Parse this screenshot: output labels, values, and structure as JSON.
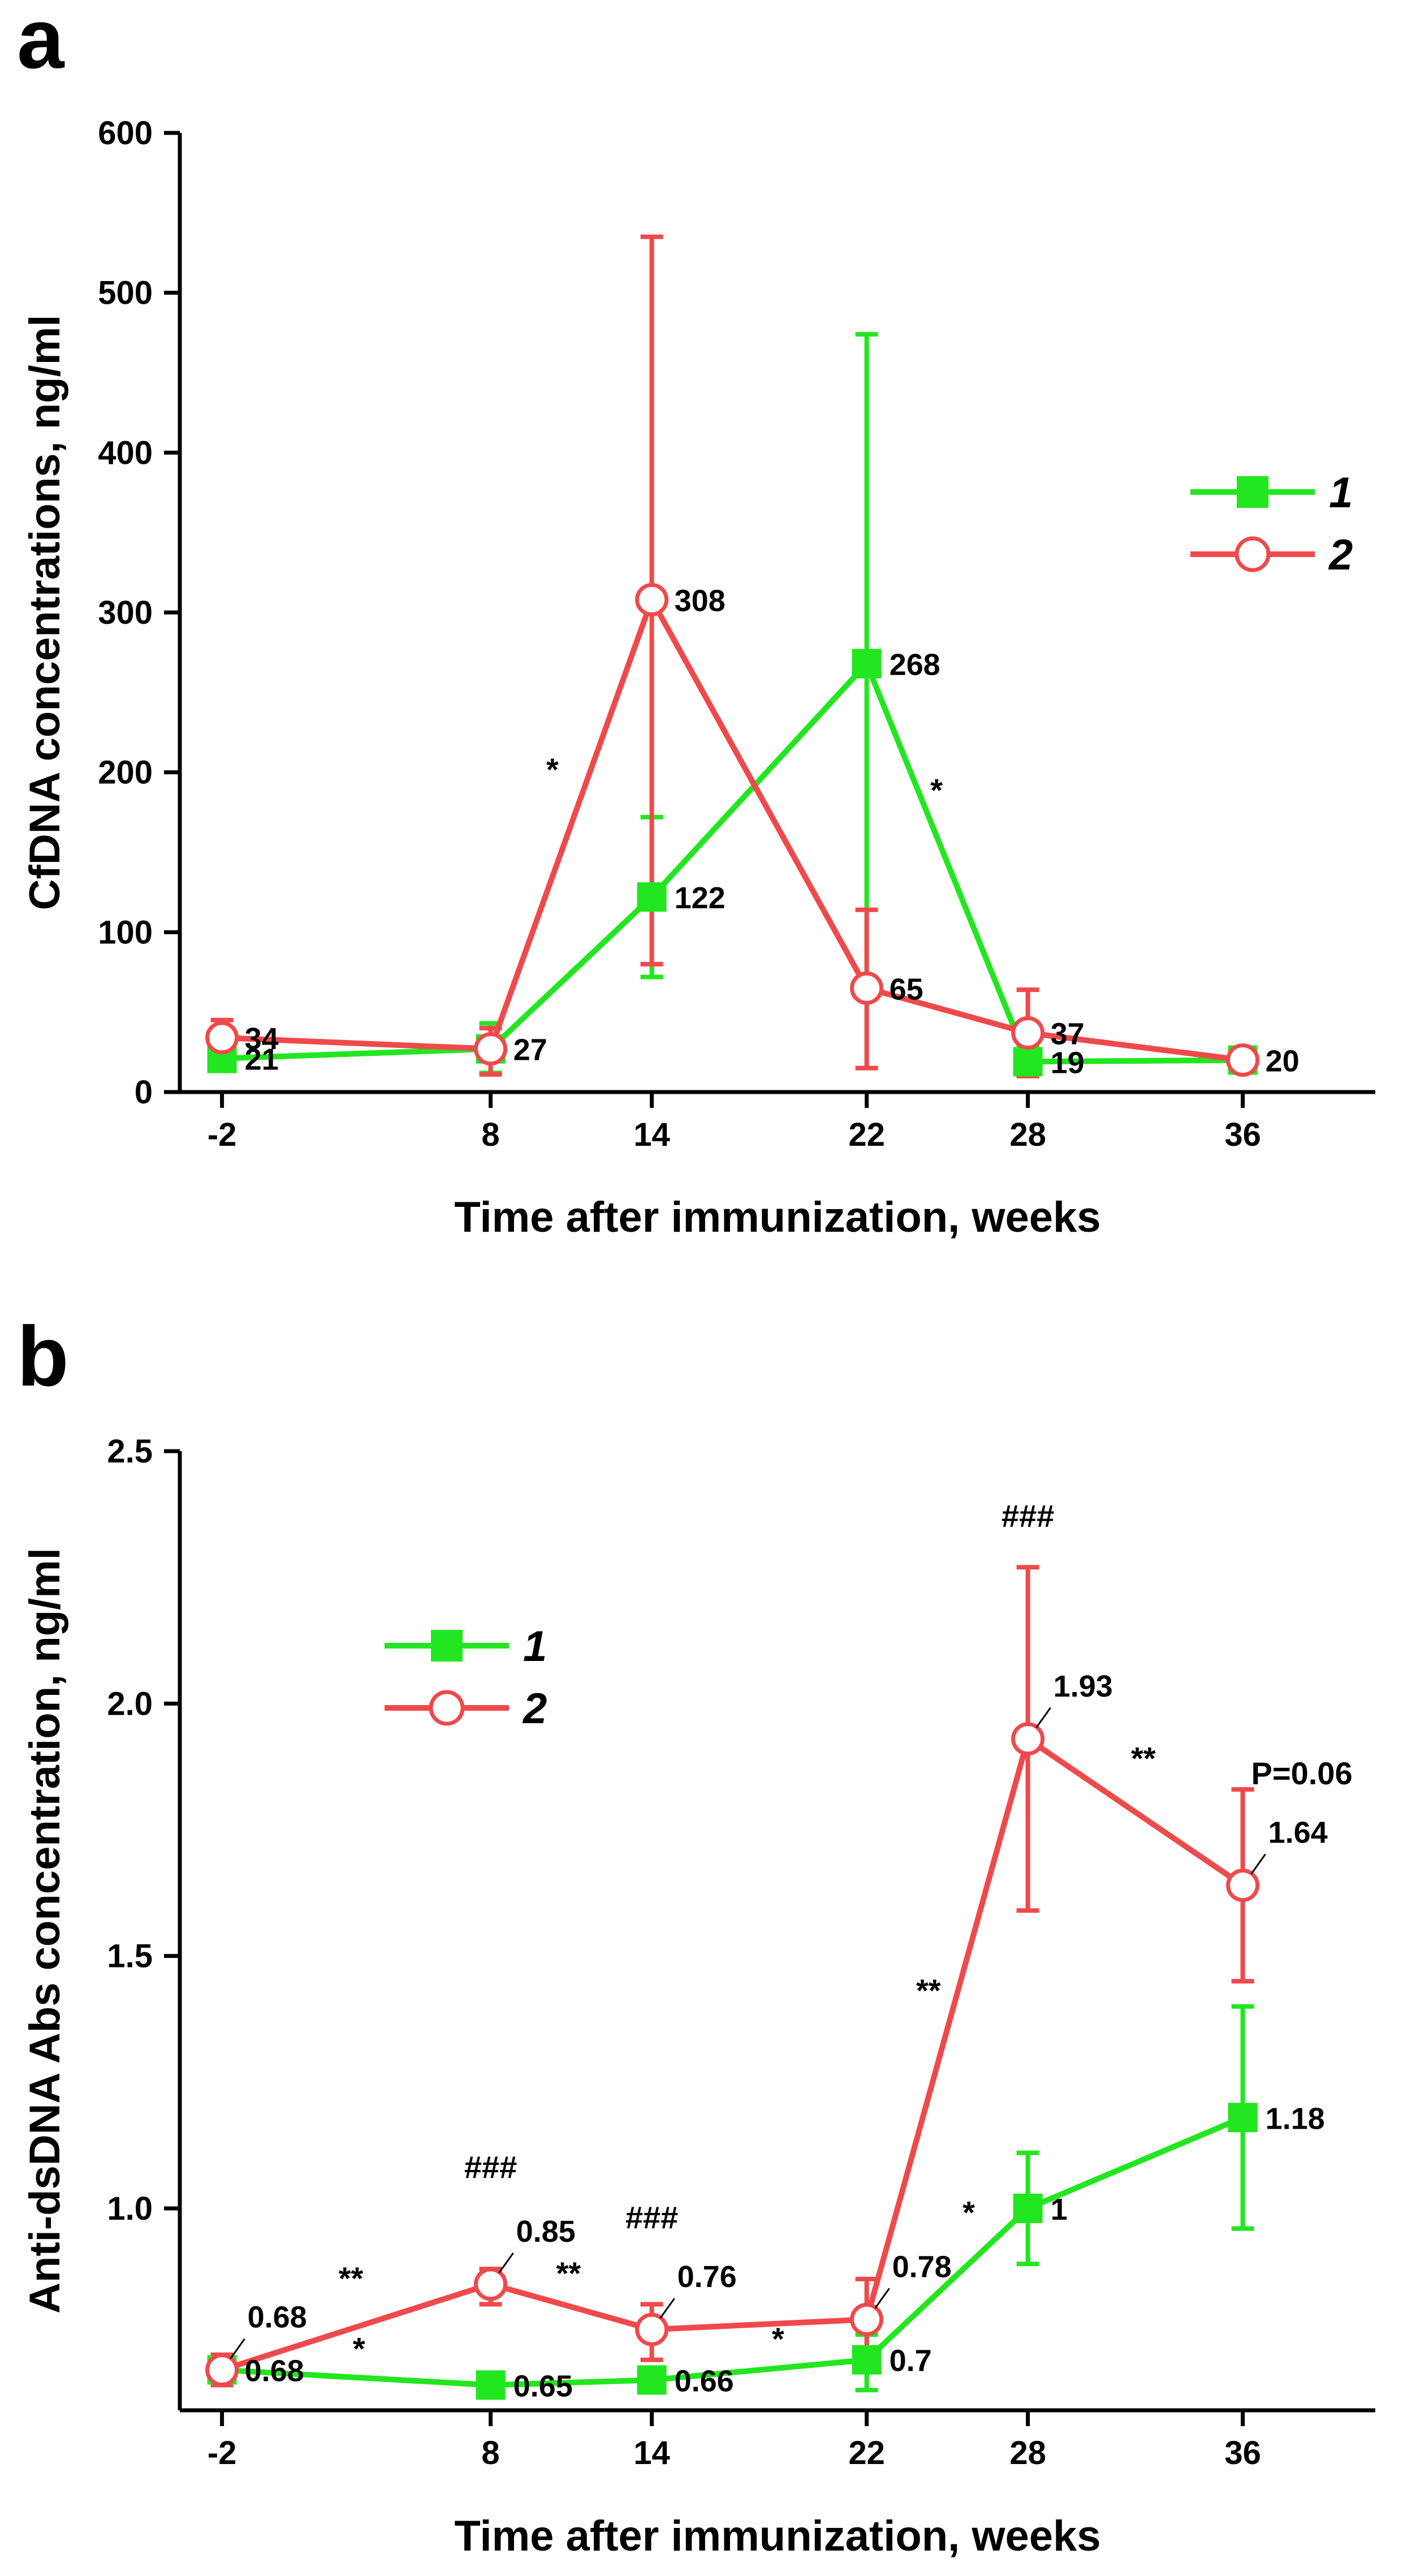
{
  "colors": {
    "series1": "#22e61f",
    "series2": "#f0494b",
    "axis": "#000000"
  },
  "chart_data": [
    {
      "panel": "a",
      "type": "line",
      "x": [
        -2,
        8,
        14,
        22,
        28,
        36
      ],
      "xticks": [
        "-2",
        "8",
        "14",
        "22",
        "28",
        "36"
      ],
      "xlabel": "Time after immunization, weeks",
      "ylabel": "CfDNA concentrations, ng/ml",
      "ylim": [
        0,
        600
      ],
      "yticks": [
        "0",
        "100",
        "200",
        "300",
        "400",
        "500",
        "600"
      ],
      "yticks_values": [
        0,
        100,
        200,
        300,
        400,
        500,
        600
      ],
      "legend_position": "top-right",
      "series": [
        {
          "name": "1",
          "marker": "square-filled",
          "values": [
            21,
            27,
            122,
            268,
            19,
            20
          ],
          "err_low": [
            16,
            12,
            72,
            63,
            10,
            15
          ],
          "err_high": [
            27,
            43,
            172,
            474,
            28,
            25
          ],
          "labels": [
            "21",
            "27",
            "122",
            "268",
            "19",
            "20"
          ]
        },
        {
          "name": "2",
          "marker": "circle-open",
          "values": [
            34,
            27,
            308,
            65,
            37,
            20
          ],
          "err_low": [
            23,
            11,
            80,
            15,
            10,
            15
          ],
          "err_high": [
            45,
            40,
            535,
            114,
            64,
            25
          ],
          "labels": [
            "34",
            "",
            "308",
            "65",
            "37",
            ""
          ]
        }
      ],
      "annotations": [
        {
          "text": "*",
          "x": 10.3,
          "y": 195
        },
        {
          "text": "*",
          "x": 24.6,
          "y": 182
        }
      ]
    },
    {
      "panel": "b",
      "type": "line",
      "x": [
        -2,
        8,
        14,
        22,
        28,
        36
      ],
      "xticks": [
        "-2",
        "8",
        "14",
        "22",
        "28",
        "36"
      ],
      "xlabel": "Time after immunization, weeks",
      "ylabel": "Anti-dsDNA Abs concentration, ng/ml",
      "ylim": [
        0.6,
        2.5
      ],
      "yticks": [
        "1.0",
        "1.5",
        "2.0",
        "2.5"
      ],
      "yticks_values": [
        1.0,
        1.5,
        2.0,
        2.5
      ],
      "legend_position": "top-left",
      "series": [
        {
          "name": "1",
          "marker": "square-filled",
          "values": [
            0.68,
            0.65,
            0.66,
            0.7,
            1.0,
            1.18
          ],
          "err_low": [
            0.66,
            0.64,
            0.64,
            0.64,
            0.89,
            0.96
          ],
          "err_high": [
            0.7,
            0.66,
            0.68,
            0.75,
            1.11,
            1.4
          ],
          "labels": [
            "0.68",
            "0.65",
            "0.66",
            "0.7",
            "1",
            "1.18"
          ]
        },
        {
          "name": "2",
          "marker": "circle-open",
          "values": [
            0.68,
            0.85,
            0.76,
            0.78,
            1.93,
            1.64
          ],
          "err_low": [
            0.65,
            0.81,
            0.7,
            0.7,
            1.59,
            1.45
          ],
          "err_high": [
            0.71,
            0.88,
            0.81,
            0.86,
            2.27,
            1.83
          ],
          "labels": [
            "0.68",
            "0.85",
            "0.76",
            "0.78",
            "1.93",
            "1.64"
          ]
        }
      ],
      "annotations": [
        {
          "text": "**",
          "x": 2.8,
          "y": 0.84
        },
        {
          "text": "*",
          "x": 3.1,
          "y": 0.7
        },
        {
          "text": "###",
          "x": 8.0,
          "y": 1.06
        },
        {
          "text": "**",
          "x": 10.9,
          "y": 0.85
        },
        {
          "text": "###",
          "x": 14.0,
          "y": 0.96
        },
        {
          "text": "*",
          "x": 18.7,
          "y": 0.72
        },
        {
          "text": "**",
          "x": 24.3,
          "y": 1.41
        },
        {
          "text": "*",
          "x": 25.8,
          "y": 0.97
        },
        {
          "text": "###",
          "x": 28.0,
          "y": 2.35
        },
        {
          "text": "**",
          "x": 32.3,
          "y": 1.87
        },
        {
          "text": "P=0.06",
          "x": 38.2,
          "y": 1.84
        }
      ]
    }
  ]
}
